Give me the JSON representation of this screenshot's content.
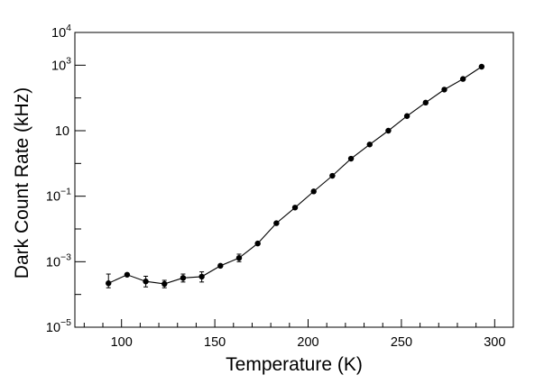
{
  "chart_data": {
    "type": "scatter",
    "xlabel": "Temperature (K)",
    "ylabel": "Dark Count Rate (kHz)",
    "xlim": [
      75,
      310
    ],
    "ylim": [
      1e-05,
      10000
    ],
    "y_scale": "log",
    "grid": false,
    "legend": "none",
    "x_ticks": [
      100,
      150,
      200,
      250,
      300
    ],
    "x_tick_labels": [
      "100",
      "150",
      "200",
      "250",
      "300"
    ],
    "y_ticks": [
      {
        "value": 1e-05,
        "base": "10",
        "exp": "−5"
      },
      {
        "value": 0.001,
        "base": "10",
        "exp": "−3"
      },
      {
        "value": 0.1,
        "base": "10",
        "exp": "−1"
      },
      {
        "value": 10,
        "base": "10",
        "exp": ""
      },
      {
        "value": 1000,
        "base": "10",
        "exp": "3"
      },
      {
        "value": 10000,
        "base": "10",
        "exp": "4"
      }
    ],
    "series": [
      {
        "marker_color": "#000000",
        "points": [
          {
            "x": 93,
            "y": 0.00022,
            "y_err_low": 0.00016,
            "y_err_high": 0.00042
          },
          {
            "x": 103,
            "y": 0.0004,
            "y_err_low": 0.00038,
            "y_err_high": 0.00042
          },
          {
            "x": 113,
            "y": 0.00025,
            "y_err_low": 0.00017,
            "y_err_high": 0.00036
          },
          {
            "x": 123,
            "y": 0.00021,
            "y_err_low": 0.00016,
            "y_err_high": 0.00027
          },
          {
            "x": 133,
            "y": 0.00032,
            "y_err_low": 0.00024,
            "y_err_high": 0.00042
          },
          {
            "x": 143,
            "y": 0.00035,
            "y_err_low": 0.00024,
            "y_err_high": 0.00049
          },
          {
            "x": 153,
            "y": 0.00075,
            "y_err_low": 0.0007,
            "y_err_high": 0.0008
          },
          {
            "x": 163,
            "y": 0.0013,
            "y_err_low": 0.001,
            "y_err_high": 0.0017
          },
          {
            "x": 173,
            "y": 0.0036,
            "y_err_low": 0.0033,
            "y_err_high": 0.0039
          },
          {
            "x": 183,
            "y": 0.015,
            "y_err_low": 0.015,
            "y_err_high": 0.015
          },
          {
            "x": 193,
            "y": 0.045,
            "y_err_low": 0.045,
            "y_err_high": 0.045
          },
          {
            "x": 203,
            "y": 0.14,
            "y_err_low": 0.14,
            "y_err_high": 0.14
          },
          {
            "x": 213,
            "y": 0.42,
            "y_err_low": 0.42,
            "y_err_high": 0.42
          },
          {
            "x": 223,
            "y": 1.4,
            "y_err_low": 1.4,
            "y_err_high": 1.4
          },
          {
            "x": 233,
            "y": 3.8,
            "y_err_low": 3.8,
            "y_err_high": 3.8
          },
          {
            "x": 243,
            "y": 10,
            "y_err_low": 10,
            "y_err_high": 10
          },
          {
            "x": 253,
            "y": 28,
            "y_err_low": 28,
            "y_err_high": 28
          },
          {
            "x": 263,
            "y": 72,
            "y_err_low": 72,
            "y_err_high": 72
          },
          {
            "x": 273,
            "y": 180,
            "y_err_low": 180,
            "y_err_high": 180
          },
          {
            "x": 283,
            "y": 380,
            "y_err_low": 380,
            "y_err_high": 380
          },
          {
            "x": 293,
            "y": 900,
            "y_err_low": 900,
            "y_err_high": 900
          }
        ]
      }
    ]
  }
}
